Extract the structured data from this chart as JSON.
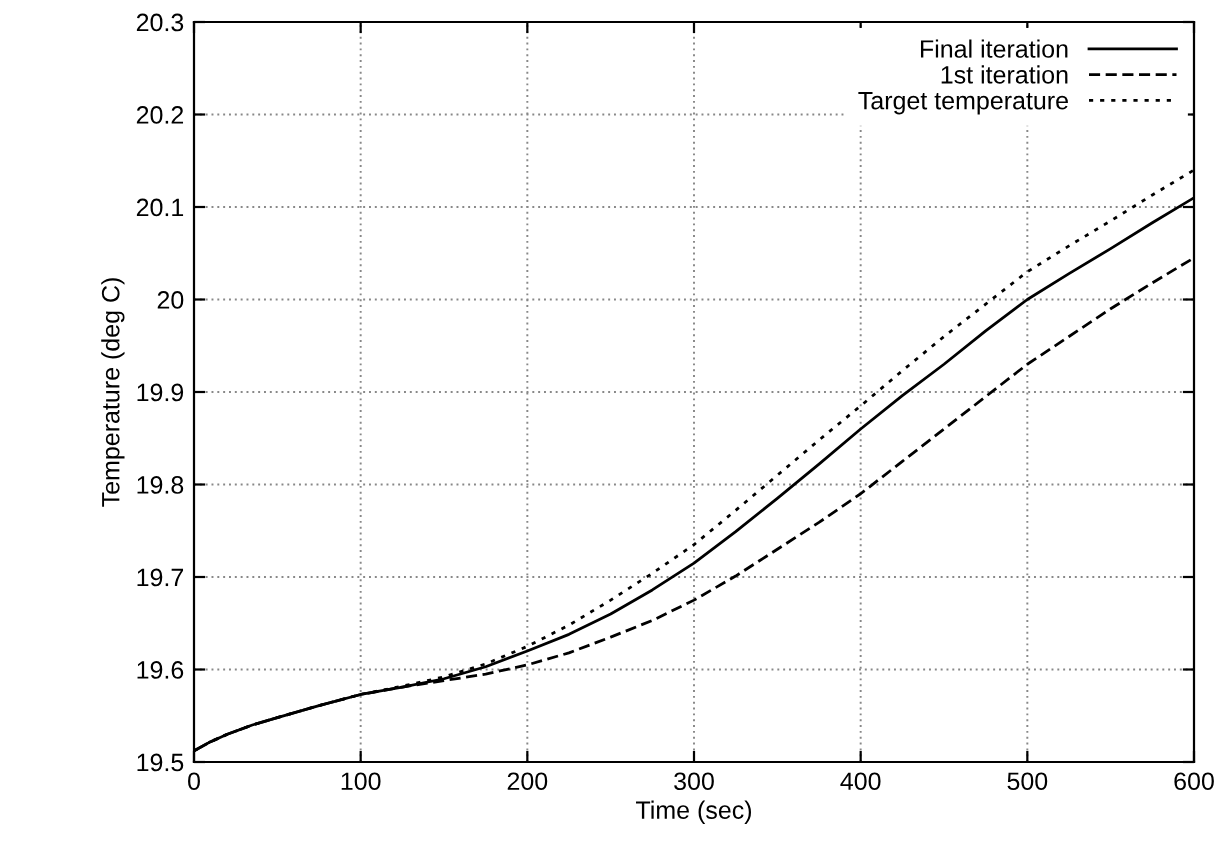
{
  "chart_data": {
    "type": "line",
    "xlabel": "Time (sec)",
    "ylabel": "Temperature (deg C)",
    "xlim": [
      0,
      600
    ],
    "ylim": [
      19.5,
      20.3
    ],
    "xticks": [
      0,
      100,
      200,
      300,
      400,
      500,
      600
    ],
    "yticks": [
      19.5,
      19.6,
      19.7,
      19.8,
      19.9,
      20,
      20.1,
      20.2,
      20.3
    ],
    "grid": true,
    "legend": "top right",
    "marker": "none",
    "x": [
      0,
      10,
      20,
      35,
      50,
      75,
      100,
      125,
      150,
      175,
      200,
      225,
      250,
      275,
      300,
      325,
      350,
      375,
      400,
      425,
      450,
      475,
      500,
      525,
      550,
      575,
      600
    ],
    "series": [
      {
        "name": "Final iteration",
        "color": "#000000",
        "line_style": "solid",
        "values": [
          19.512,
          19.522,
          19.53,
          19.54,
          19.548,
          19.561,
          19.573,
          19.581,
          19.59,
          19.603,
          19.62,
          19.638,
          19.66,
          19.686,
          19.715,
          19.749,
          19.785,
          19.822,
          19.86,
          19.896,
          19.93,
          19.966,
          20.0,
          20.028,
          20.055,
          20.083,
          20.11
        ]
      },
      {
        "name": "1st iteration",
        "color": "#000000",
        "line_style": "dashed",
        "values": [
          19.512,
          19.522,
          19.53,
          19.54,
          19.548,
          19.561,
          19.573,
          19.581,
          19.588,
          19.595,
          19.605,
          19.618,
          19.635,
          19.653,
          19.675,
          19.701,
          19.73,
          19.759,
          19.79,
          19.825,
          19.86,
          19.895,
          19.93,
          19.96,
          19.99,
          20.018,
          20.045
        ]
      },
      {
        "name": "Target temperature",
        "color": "#000000",
        "line_style": "dotted",
        "values": [
          19.512,
          19.522,
          19.53,
          19.54,
          19.548,
          19.561,
          19.573,
          19.582,
          19.592,
          19.606,
          19.625,
          19.648,
          19.675,
          19.704,
          19.735,
          19.772,
          19.81,
          19.848,
          19.885,
          19.923,
          19.96,
          19.995,
          20.03,
          20.058,
          20.085,
          20.113,
          20.14
        ]
      }
    ]
  }
}
